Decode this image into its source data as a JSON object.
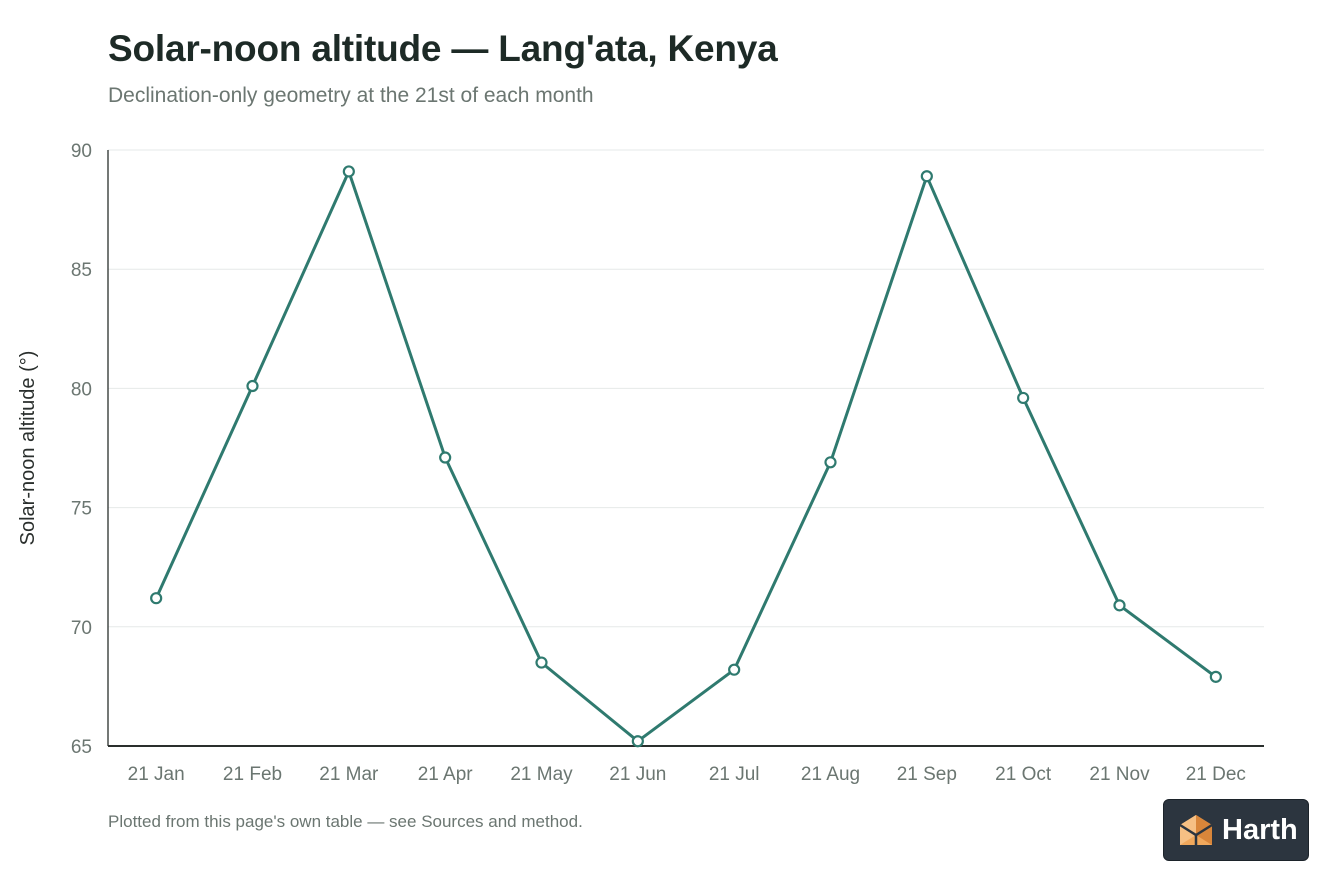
{
  "header": {
    "title": "Solar-noon altitude — Lang'ata, Kenya",
    "subtitle": "Declination-only geometry at the 21st of each month"
  },
  "footnote": "Plotted from this page's own table — see Sources and method.",
  "badge": {
    "text": "Harth",
    "icon": "house-logo-icon"
  },
  "colors": {
    "line": "#2f7a6f",
    "grid": "#e6e9e8",
    "axis": "#2a2f2d",
    "tick_label": "#6b7671",
    "logo_orange": "#f0a85c",
    "logo_orange_dark": "#d9863a",
    "badge_bg": "#2c353f"
  },
  "chart_data": {
    "type": "line",
    "title": "Solar-noon altitude — Lang'ata, Kenya",
    "subtitle": "Declination-only geometry at the 21st of each month",
    "xlabel": "",
    "ylabel": "Solar-noon altitude (°)",
    "categories": [
      "21 Jan",
      "21 Feb",
      "21 Mar",
      "21 Apr",
      "21 May",
      "21 Jun",
      "21 Jul",
      "21 Aug",
      "21 Sep",
      "21 Oct",
      "21 Nov",
      "21 Dec"
    ],
    "series": [
      {
        "values": [
          71.2,
          80.1,
          89.1,
          77.1,
          68.5,
          65.2,
          68.2,
          76.9,
          88.9,
          79.6,
          70.9,
          67.9
        ]
      }
    ],
    "ylim": [
      65,
      90
    ],
    "yticks": [
      90,
      85,
      80,
      75,
      70,
      65
    ],
    "grid": true,
    "markers": "hollow-circle",
    "legend": "none"
  }
}
